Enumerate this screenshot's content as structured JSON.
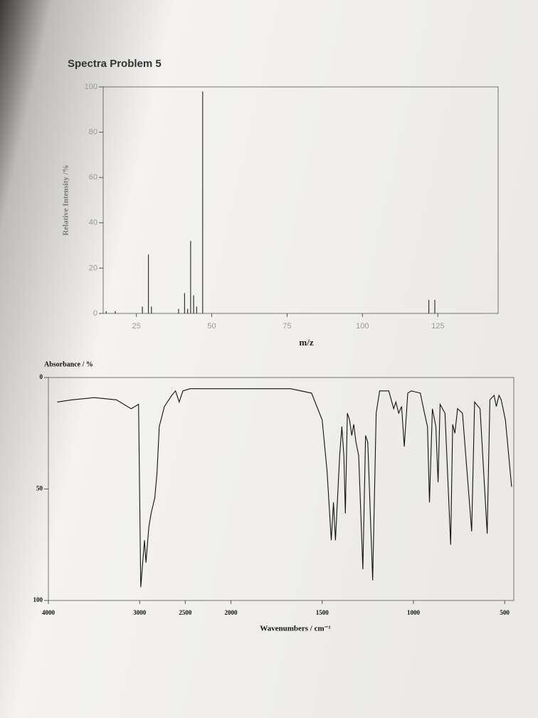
{
  "chart_data": [
    {
      "type": "bar",
      "title": "Spectra Problem 5",
      "xlabel": "m/z",
      "ylabel": "Relative Intensity /%",
      "x": [
        15,
        18,
        27,
        29,
        30,
        39,
        41,
        42,
        43,
        44,
        45,
        47,
        122,
        124
      ],
      "values": [
        1,
        1,
        3,
        26,
        3,
        2,
        9,
        2,
        32,
        8,
        3,
        98,
        6,
        6
      ],
      "color": "#333333",
      "xlim": [
        14,
        145
      ],
      "xticks": [
        25,
        50,
        75,
        100,
        125
      ],
      "ylim": [
        0,
        100
      ],
      "yticks": [
        0,
        20,
        40,
        60,
        80,
        100
      ]
    },
    {
      "type": "line",
      "xlabel": "Wavenumbers / cm⁻¹",
      "ylabel": "Absorbance / %",
      "x": [
        3903,
        3741,
        3498,
        3255,
        3093,
        3012,
        2988,
        2947,
        2931,
        2899,
        2875,
        2834,
        2810,
        2785,
        2729,
        2648,
        2607,
        2567,
        2526,
        2445,
        2121,
        1865,
        1673,
        1558,
        1500,
        1473,
        1450,
        1438,
        1427,
        1404,
        1392,
        1381,
        1373,
        1362,
        1350,
        1338,
        1327,
        1315,
        1300,
        1277,
        1262,
        1250,
        1223,
        1204,
        1185,
        1135,
        1108,
        1096,
        1081,
        1065,
        1050,
        1031,
        1012,
        962,
        942,
        923,
        912,
        896,
        877,
        865,
        854,
        827,
        796,
        785,
        773,
        758,
        731,
        681,
        665,
        635,
        596,
        581,
        558,
        546,
        531,
        519,
        496,
        481,
        462
      ],
      "values": [
        11,
        10,
        9,
        10,
        14,
        12,
        94,
        73,
        83,
        67,
        61,
        54,
        43,
        22,
        13,
        8,
        6,
        11,
        6,
        5,
        5,
        5,
        5,
        7,
        19,
        42,
        73,
        56,
        73,
        35,
        22,
        35,
        61,
        16,
        19,
        26,
        21,
        29,
        35,
        86,
        26,
        29,
        91,
        16,
        6,
        6,
        14,
        11,
        16,
        13,
        31,
        7,
        6,
        7,
        15,
        22,
        56,
        14,
        22,
        47,
        12,
        16,
        75,
        21,
        25,
        14,
        16,
        69,
        11,
        14,
        70,
        10,
        8,
        13,
        8,
        10,
        19,
        32,
        49
      ],
      "color": "#111111",
      "xlim": [
        4000,
        450
      ],
      "xticks": [
        4000,
        3000,
        2500,
        2000,
        1500,
        1000,
        500
      ],
      "x_break": 2000,
      "x_expand": 2,
      "ylim": [
        100,
        0
      ],
      "yticks": [
        0,
        50,
        100
      ]
    }
  ]
}
